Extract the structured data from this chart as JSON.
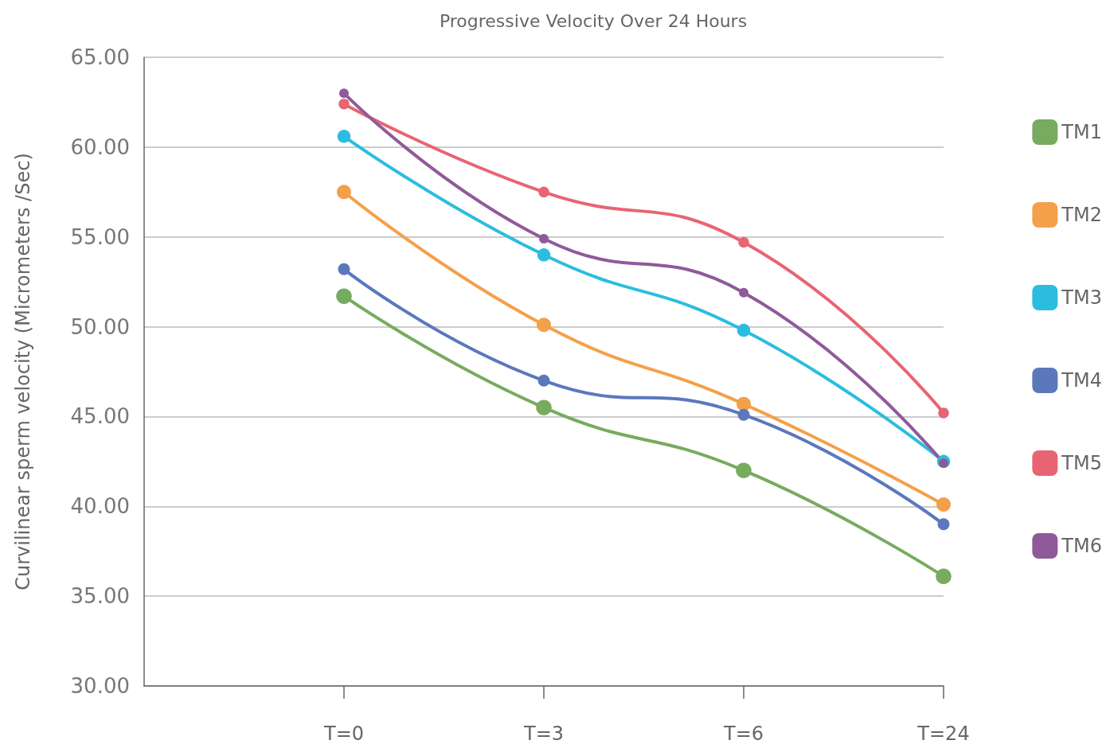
{
  "chart_data": {
    "type": "line",
    "title": "Progressive Velocity Over 24 Hours",
    "ylabel": "Curvilinear sperm velocity (Micrometers /Sec)",
    "categories": [
      null,
      "T=0",
      "T=3",
      "T=6",
      "T=24"
    ],
    "series": [
      {
        "name": "TM1",
        "color": "#77ab5f",
        "values": [
          null,
          51.7,
          45.5,
          42.0,
          36.1
        ]
      },
      {
        "name": "TM2",
        "color": "#f4a04a",
        "values": [
          null,
          57.5,
          50.1,
          45.7,
          40.1
        ]
      },
      {
        "name": "TM3",
        "color": "#2bbde0",
        "values": [
          null,
          60.6,
          54.0,
          49.8,
          42.5
        ]
      },
      {
        "name": "TM4",
        "color": "#5b78bd",
        "values": [
          null,
          53.2,
          47.0,
          45.1,
          39.0
        ]
      },
      {
        "name": "TM5",
        "color": "#e96473",
        "values": [
          null,
          62.4,
          57.5,
          54.7,
          45.2
        ]
      },
      {
        "name": "TM6",
        "color": "#8f5a9a",
        "values": [
          null,
          63.0,
          54.9,
          51.9,
          42.4
        ]
      }
    ],
    "ylim": [
      30,
      65
    ],
    "yticks": [
      {
        "value": 30,
        "label": "30.00"
      },
      {
        "value": 35,
        "label": "35.00"
      },
      {
        "value": 40,
        "label": "40.00"
      },
      {
        "value": 45,
        "label": "45.00"
      },
      {
        "value": 50,
        "label": "50.00"
      },
      {
        "value": 55,
        "label": "55.00"
      },
      {
        "value": 60,
        "label": "60.00"
      },
      {
        "value": 65,
        "label": "65.00"
      }
    ],
    "grid": "y",
    "legend": "right",
    "marker": "circle",
    "line_style": "solid"
  }
}
